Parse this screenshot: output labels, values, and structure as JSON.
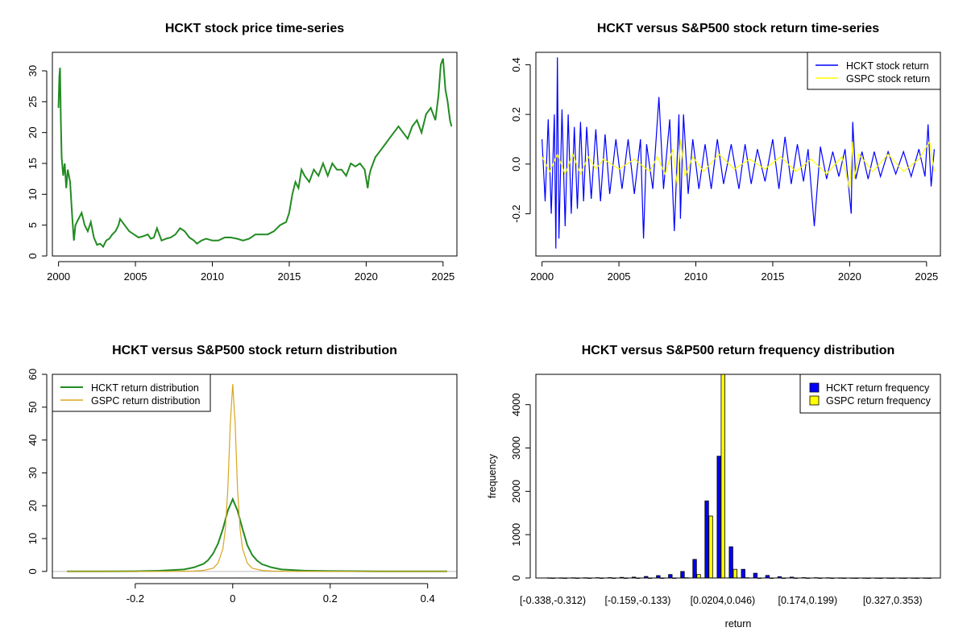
{
  "chart_data": [
    {
      "type": "line",
      "title": "HCKT stock price time-series",
      "xlabel": "",
      "ylabel": "",
      "xlim": [
        1999.6,
        2025.9
      ],
      "ylim": [
        0,
        33
      ],
      "xticks": [
        2000,
        2005,
        2010,
        2015,
        2020,
        2025
      ],
      "yticks": [
        0,
        5,
        10,
        15,
        20,
        25,
        30
      ],
      "rotate_y_ticks": true,
      "series": [
        {
          "color": "#228B22",
          "x": [
            2000.0,
            2000.05,
            2000.1,
            2000.15,
            2000.2,
            2000.3,
            2000.4,
            2000.5,
            2000.6,
            2000.75,
            2000.9,
            2001.0,
            2001.1,
            2001.3,
            2001.5,
            2001.7,
            2001.9,
            2002.1,
            2002.3,
            2002.5,
            2002.7,
            2002.9,
            2003.1,
            2003.3,
            2003.5,
            2003.7,
            2003.9,
            2004.0,
            2004.3,
            2004.6,
            2004.9,
            2005.2,
            2005.5,
            2005.8,
            2006.0,
            2006.2,
            2006.4,
            2006.7,
            2007.0,
            2007.3,
            2007.6,
            2007.9,
            2008.2,
            2008.5,
            2008.8,
            2009.0,
            2009.3,
            2009.6,
            2010.0,
            2010.4,
            2010.8,
            2011.2,
            2011.6,
            2012.0,
            2012.4,
            2012.8,
            2013.2,
            2013.6,
            2014.0,
            2014.4,
            2014.8,
            2015.0,
            2015.2,
            2015.4,
            2015.6,
            2015.8,
            2016.0,
            2016.3,
            2016.6,
            2016.9,
            2017.2,
            2017.5,
            2017.8,
            2018.1,
            2018.4,
            2018.7,
            2019.0,
            2019.3,
            2019.6,
            2019.9,
            2020.1,
            2020.2,
            2020.3,
            2020.6,
            2020.9,
            2021.2,
            2021.5,
            2021.8,
            2022.1,
            2022.4,
            2022.7,
            2023.0,
            2023.3,
            2023.6,
            2023.9,
            2024.2,
            2024.5,
            2024.7,
            2024.85,
            2025.0,
            2025.15,
            2025.3,
            2025.45,
            2025.55
          ],
          "y": [
            24,
            29,
            30.5,
            22,
            16,
            13,
            15,
            11,
            14,
            12,
            6,
            2.5,
            5,
            6,
            7,
            5,
            4,
            5.5,
            3,
            1.8,
            2,
            1.5,
            2.5,
            2.8,
            3.5,
            4,
            5,
            6,
            5,
            4,
            3.5,
            3,
            3.2,
            3.5,
            2.8,
            3,
            4.5,
            2.5,
            2.8,
            3,
            3.5,
            4.5,
            4,
            3,
            2.5,
            2,
            2.5,
            2.8,
            2.5,
            2.5,
            3,
            3,
            2.8,
            2.5,
            2.8,
            3.5,
            3.5,
            3.5,
            4,
            5,
            5.5,
            7,
            10,
            12,
            11,
            14,
            13,
            12,
            14,
            13,
            15,
            13,
            15,
            14,
            14,
            13,
            15,
            14.5,
            15,
            14,
            11,
            13,
            14,
            16,
            17,
            18,
            19,
            20,
            21,
            20,
            19,
            21,
            22,
            20,
            23,
            24,
            22,
            26,
            31,
            32,
            27,
            25,
            22,
            21
          ]
        }
      ]
    },
    {
      "type": "line",
      "title": "HCKT versus S&P500 stock return time-series",
      "xlabel": "",
      "ylabel": "",
      "xlim": [
        1999.6,
        2025.9
      ],
      "ylim": [
        -0.37,
        0.45
      ],
      "xticks": [
        2000,
        2005,
        2010,
        2015,
        2020,
        2025
      ],
      "yticks": [
        -0.2,
        0.0,
        0.2,
        0.4
      ],
      "rotate_y_ticks": true,
      "legend": "top-right",
      "series": [
        {
          "name": "HCKT stock return",
          "color": "#0000FF",
          "x": [
            2000.0,
            2000.2,
            2000.4,
            2000.6,
            2000.8,
            2000.9,
            2001.0,
            2001.1,
            2001.3,
            2001.5,
            2001.7,
            2001.9,
            2002.1,
            2002.3,
            2002.5,
            2002.7,
            2002.9,
            2003.2,
            2003.5,
            2003.8,
            2004.1,
            2004.4,
            2004.8,
            2005.2,
            2005.6,
            2006.0,
            2006.4,
            2006.6,
            2006.8,
            2007.2,
            2007.6,
            2007.9,
            2008.3,
            2008.6,
            2008.9,
            2009.0,
            2009.2,
            2009.5,
            2009.8,
            2010.2,
            2010.6,
            2011.0,
            2011.4,
            2011.8,
            2012.3,
            2012.8,
            2013.2,
            2013.6,
            2014.0,
            2014.5,
            2015.0,
            2015.4,
            2015.8,
            2016.2,
            2016.6,
            2017.0,
            2017.3,
            2017.7,
            2018.1,
            2018.5,
            2018.9,
            2019.3,
            2019.7,
            2020.1,
            2020.2,
            2020.4,
            2020.8,
            2021.2,
            2021.6,
            2022.0,
            2022.5,
            2023.0,
            2023.5,
            2024.0,
            2024.5,
            2024.9,
            2025.1,
            2025.3,
            2025.5
          ],
          "y": [
            0.1,
            -0.15,
            0.18,
            -0.2,
            0.2,
            -0.34,
            0.43,
            -0.3,
            0.22,
            -0.25,
            0.2,
            -0.2,
            0.15,
            -0.18,
            0.17,
            -0.15,
            0.15,
            -0.14,
            0.14,
            -0.15,
            0.12,
            -0.12,
            0.1,
            -0.1,
            0.1,
            -0.12,
            0.1,
            -0.3,
            0.08,
            -0.1,
            0.27,
            -0.1,
            0.18,
            -0.27,
            0.2,
            -0.22,
            0.2,
            -0.12,
            0.1,
            -0.1,
            0.08,
            -0.1,
            0.1,
            -0.08,
            0.08,
            -0.1,
            0.08,
            -0.08,
            0.06,
            -0.07,
            0.1,
            -0.1,
            0.11,
            -0.08,
            0.08,
            -0.07,
            0.06,
            -0.25,
            0.07,
            -0.06,
            0.05,
            -0.05,
            0.06,
            -0.2,
            0.17,
            -0.06,
            0.05,
            -0.06,
            0.05,
            -0.05,
            0.05,
            -0.04,
            0.05,
            -0.05,
            0.06,
            -0.05,
            0.16,
            -0.09,
            0.06
          ]
        },
        {
          "name": "GSPC stock return",
          "color": "#FFFF00",
          "x": [
            2000.0,
            2000.5,
            2001.0,
            2001.5,
            2002.0,
            2002.5,
            2003.0,
            2003.5,
            2004.0,
            2005.0,
            2006.0,
            2007.0,
            2007.5,
            2008.0,
            2008.5,
            2008.8,
            2009.0,
            2009.3,
            2009.8,
            2010.5,
            2011.5,
            2012.5,
            2013.5,
            2014.5,
            2015.5,
            2016.5,
            2017.5,
            2018.5,
            2019.5,
            2020.0,
            2020.2,
            2020.3,
            2020.6,
            2021.5,
            2022.5,
            2023.5,
            2024.5,
            2025.2,
            2025.5
          ],
          "y": [
            0.03,
            -0.03,
            0.04,
            -0.04,
            0.04,
            -0.04,
            0.03,
            -0.02,
            0.02,
            -0.02,
            0.02,
            -0.03,
            0.03,
            -0.04,
            0.06,
            -0.09,
            0.1,
            -0.05,
            0.03,
            -0.03,
            0.04,
            -0.02,
            0.02,
            -0.02,
            0.03,
            -0.03,
            0.02,
            -0.04,
            0.03,
            -0.1,
            0.09,
            -0.06,
            0.04,
            -0.03,
            0.04,
            -0.03,
            0.02,
            0.09,
            -0.03
          ]
        }
      ]
    },
    {
      "type": "line",
      "title": "HCKT versus S&P500 stock return distribution",
      "xlabel": "",
      "ylabel": "",
      "xlim": [
        -0.37,
        0.46
      ],
      "ylim": [
        -2,
        60
      ],
      "xticks": [
        -0.2,
        0.0,
        0.2,
        0.4
      ],
      "yticks": [
        0,
        10,
        20,
        30,
        40,
        50,
        60
      ],
      "rotate_y_ticks": true,
      "legend": "top-left",
      "series": [
        {
          "name": "HCKT return distribution",
          "color": "#228B22",
          "x": [
            -0.34,
            -0.2,
            -0.15,
            -0.1,
            -0.08,
            -0.06,
            -0.05,
            -0.04,
            -0.03,
            -0.02,
            -0.01,
            0.0,
            0.01,
            0.02,
            0.03,
            0.04,
            0.05,
            0.06,
            0.08,
            0.1,
            0.15,
            0.2,
            0.3,
            0.44
          ],
          "y": [
            0,
            0.05,
            0.2,
            0.6,
            1.2,
            2.3,
            3.5,
            5.5,
            8.5,
            13,
            18.5,
            22,
            18.5,
            13,
            8,
            5,
            3.3,
            2.2,
            1.2,
            0.6,
            0.2,
            0.1,
            0.02,
            0
          ]
        },
        {
          "name": "GSPC return distribution",
          "color": "#DAA520",
          "x": [
            -0.34,
            -0.12,
            -0.08,
            -0.06,
            -0.04,
            -0.03,
            -0.02,
            -0.015,
            -0.01,
            -0.005,
            0.0,
            0.005,
            0.01,
            0.015,
            0.02,
            0.03,
            0.04,
            0.06,
            0.08,
            0.12,
            0.44
          ],
          "y": [
            0,
            0.02,
            0.1,
            0.3,
            1,
            2.5,
            7,
            13,
            25,
            45,
            57,
            45,
            25,
            13,
            7,
            2.5,
            1,
            0.3,
            0.1,
            0.02,
            0
          ]
        }
      ],
      "baseline": 0
    },
    {
      "type": "bar",
      "title": "HCKT versus S&P500 return frequency distribution",
      "xlabel": "return",
      "ylabel": "frequency",
      "ylim": [
        0,
        4700
      ],
      "yticks": [
        0,
        1000,
        2000,
        3000,
        4000
      ],
      "rotate_y_ticks": true,
      "legend": "top-right",
      "categories": [
        "[-0.338,-0.312)",
        "",
        "",
        "",
        "",
        "",
        "",
        "[-0.159,-0.133)",
        "",
        "",
        "",
        "",
        "",
        "",
        "[0.0204,0.046)",
        "",
        "",
        "",
        "",
        "",
        "",
        "[0.174,0.199)",
        "",
        "",
        "",
        "",
        "",
        "",
        "[0.327,0.353)",
        "",
        "",
        ""
      ],
      "series": [
        {
          "name": "HCKT return frequency",
          "color": "#0000FF",
          "values": [
            3,
            3,
            5,
            5,
            8,
            10,
            15,
            20,
            35,
            55,
            80,
            150,
            430,
            1780,
            2810,
            720,
            200,
            110,
            60,
            30,
            20,
            10,
            8,
            5,
            3,
            2,
            2,
            1,
            1,
            1,
            1,
            1
          ]
        },
        {
          "name": "GSPC return frequency",
          "color": "#FFFF00",
          "values": [
            0,
            0,
            0,
            0,
            0,
            0,
            0,
            0,
            0,
            0,
            0,
            5,
            80,
            1430,
            4700,
            200,
            5,
            0,
            0,
            0,
            0,
            0,
            0,
            0,
            0,
            0,
            0,
            0,
            0,
            0,
            0,
            0
          ]
        }
      ]
    }
  ]
}
